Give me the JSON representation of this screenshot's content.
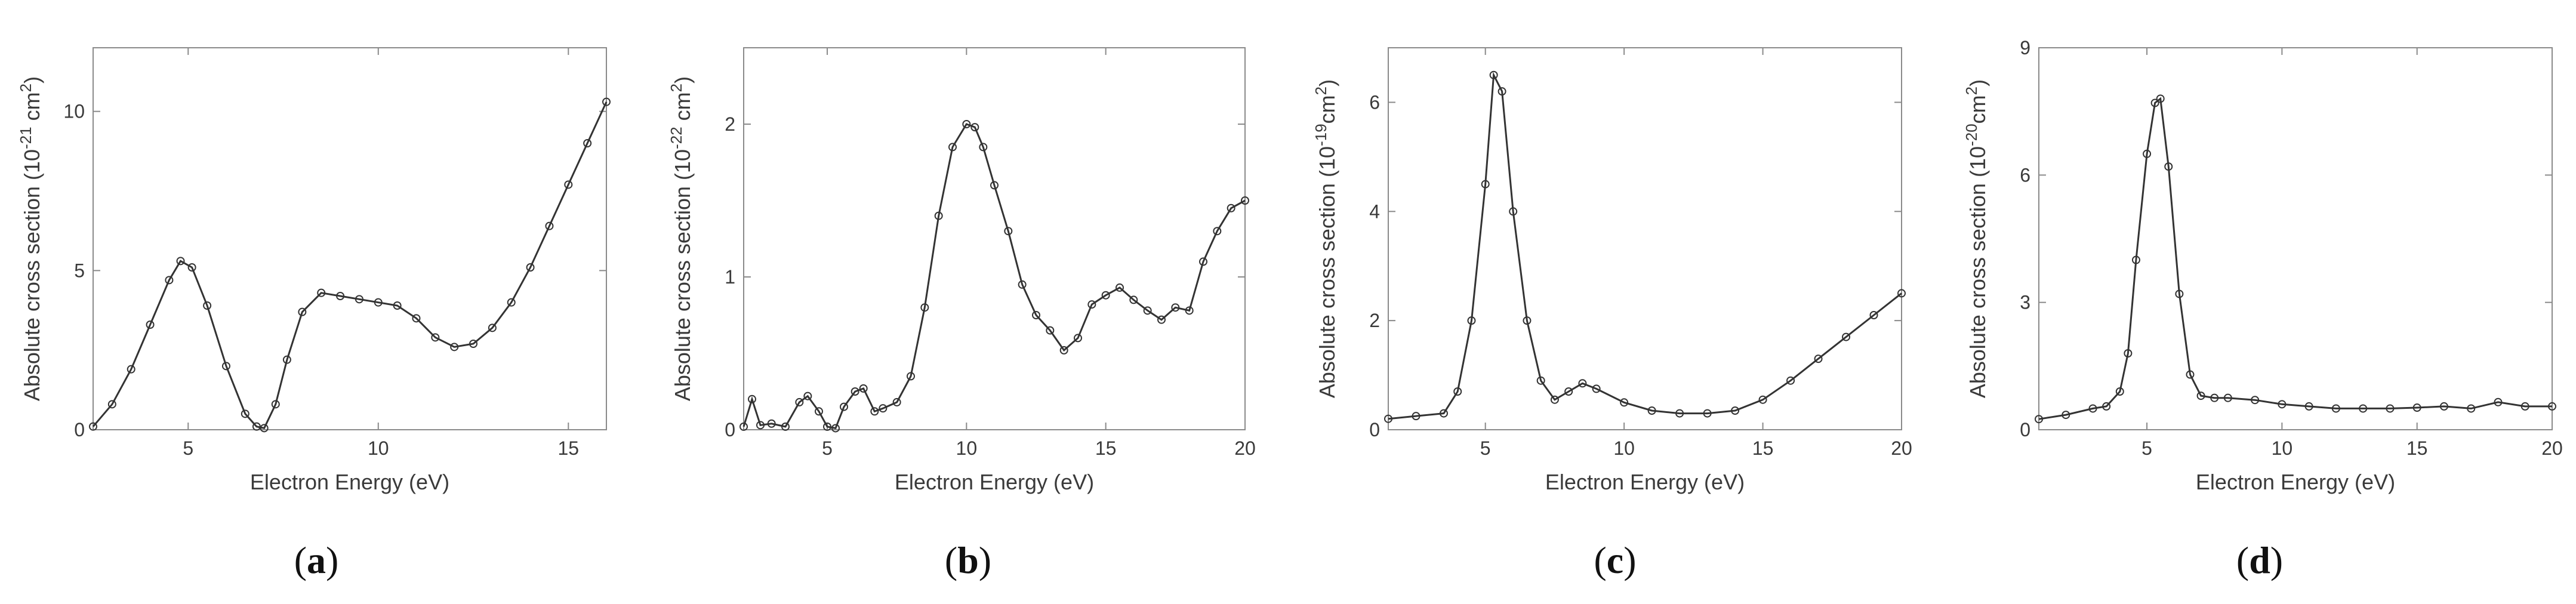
{
  "chart_data": [
    {
      "type": "line",
      "panel_label": "a",
      "xlabel": "Electron Energy (eV)",
      "ylabel": "Absolute cross section (10",
      "ylabel_exponent": "-21",
      "ylabel_unit": " cm",
      "ylabel_unit_exponent": "2",
      "ylabel_close": ")",
      "xlim": [
        2.5,
        16
      ],
      "ylim": [
        0,
        12
      ],
      "xticks": [
        5,
        10,
        15
      ],
      "yticks": [
        0,
        5,
        10
      ],
      "markers": "circle",
      "series": [
        {
          "name": "cross section",
          "x": [
            2.5,
            3.0,
            3.5,
            4.0,
            4.5,
            4.8,
            5.1,
            5.5,
            6.0,
            6.5,
            6.8,
            7.0,
            7.3,
            7.6,
            8.0,
            8.5,
            9.0,
            9.5,
            10.0,
            10.5,
            11.0,
            11.5,
            12.0,
            12.5,
            13.0,
            13.5,
            14.0,
            14.5,
            15.0,
            15.5,
            16.0
          ],
          "y": [
            0.1,
            0.8,
            1.9,
            3.3,
            4.7,
            5.3,
            5.1,
            3.9,
            2.0,
            0.5,
            0.1,
            0.05,
            0.8,
            2.2,
            3.7,
            4.3,
            4.2,
            4.1,
            4.0,
            3.9,
            3.5,
            2.9,
            2.6,
            2.7,
            3.2,
            4.0,
            5.1,
            6.4,
            7.7,
            9.0,
            10.3
          ]
        }
      ]
    },
    {
      "type": "line",
      "panel_label": "b",
      "xlabel": "Electron Energy (eV)",
      "ylabel": "Absolute cross section (10",
      "ylabel_exponent": "-22",
      "ylabel_unit": " cm",
      "ylabel_unit_exponent": "2",
      "ylabel_close": ")",
      "xlim": [
        2,
        20
      ],
      "ylim": [
        0,
        2.5
      ],
      "xticks": [
        5,
        10,
        15,
        20
      ],
      "yticks": [
        0,
        1,
        2
      ],
      "markers": "circle",
      "series": [
        {
          "name": "cross section",
          "x": [
            2.0,
            2.3,
            2.6,
            3.0,
            3.5,
            4.0,
            4.3,
            4.7,
            5.0,
            5.3,
            5.6,
            6.0,
            6.3,
            6.7,
            7.0,
            7.5,
            8.0,
            8.5,
            9.0,
            9.5,
            10.0,
            10.3,
            10.6,
            11.0,
            11.5,
            12.0,
            12.5,
            13.0,
            13.5,
            14.0,
            14.5,
            15.0,
            15.5,
            16.0,
            16.5,
            17.0,
            17.5,
            18.0,
            18.5,
            19.0,
            19.5,
            20.0
          ],
          "y": [
            0.02,
            0.2,
            0.03,
            0.04,
            0.02,
            0.18,
            0.22,
            0.12,
            0.02,
            0.01,
            0.15,
            0.25,
            0.27,
            0.12,
            0.14,
            0.18,
            0.35,
            0.8,
            1.4,
            1.85,
            2.0,
            1.98,
            1.85,
            1.6,
            1.3,
            0.95,
            0.75,
            0.65,
            0.52,
            0.6,
            0.82,
            0.88,
            0.93,
            0.85,
            0.78,
            0.72,
            0.8,
            0.78,
            1.1,
            1.3,
            1.45,
            1.5
          ]
        }
      ]
    },
    {
      "type": "line",
      "panel_label": "c",
      "xlabel": "Electron Energy (eV)",
      "ylabel": "Absolute cross section (10",
      "ylabel_exponent": "-19",
      "ylabel_unit": "cm",
      "ylabel_unit_exponent": "2",
      "ylabel_close": ")",
      "xlim": [
        1.5,
        20
      ],
      "ylim": [
        0,
        7
      ],
      "xticks": [
        5,
        10,
        15,
        20
      ],
      "yticks": [
        0,
        2,
        4,
        6
      ],
      "markers": "circle",
      "series": [
        {
          "name": "cross section",
          "x": [
            1.5,
            2.5,
            3.5,
            4.0,
            4.5,
            5.0,
            5.3,
            5.6,
            6.0,
            6.5,
            7.0,
            7.5,
            8.0,
            8.5,
            9.0,
            10.0,
            11.0,
            12.0,
            13.0,
            14.0,
            15.0,
            16.0,
            17.0,
            18.0,
            19.0,
            20.0
          ],
          "y": [
            0.2,
            0.25,
            0.3,
            0.7,
            2.0,
            4.5,
            6.5,
            6.2,
            4.0,
            2.0,
            0.9,
            0.55,
            0.7,
            0.85,
            0.75,
            0.5,
            0.35,
            0.3,
            0.3,
            0.35,
            0.55,
            0.9,
            1.3,
            1.7,
            2.1,
            2.5
          ]
        }
      ]
    },
    {
      "type": "line",
      "panel_label": "d",
      "xlabel": "Electron Energy (eV)",
      "ylabel": "Absolute cross section (10",
      "ylabel_exponent": "-20",
      "ylabel_unit": "cm",
      "ylabel_unit_exponent": "2",
      "ylabel_close": ")",
      "xlim": [
        1,
        20
      ],
      "ylim": [
        0,
        9
      ],
      "xticks": [
        5,
        10,
        15,
        20
      ],
      "yticks": [
        0,
        3,
        6,
        9
      ],
      "markers": "circle",
      "series": [
        {
          "name": "cross section",
          "x": [
            1.0,
            2.0,
            3.0,
            3.5,
            4.0,
            4.3,
            4.6,
            5.0,
            5.3,
            5.5,
            5.8,
            6.2,
            6.6,
            7.0,
            7.5,
            8.0,
            9.0,
            10.0,
            11.0,
            12.0,
            13.0,
            14.0,
            15.0,
            16.0,
            17.0,
            18.0,
            19.0,
            20.0
          ],
          "y": [
            0.25,
            0.35,
            0.5,
            0.55,
            0.9,
            1.8,
            4.0,
            6.5,
            7.7,
            7.8,
            6.2,
            3.2,
            1.3,
            0.8,
            0.75,
            0.75,
            0.7,
            0.6,
            0.55,
            0.5,
            0.5,
            0.5,
            0.52,
            0.55,
            0.5,
            0.65,
            0.55,
            0.55
          ]
        }
      ]
    }
  ]
}
